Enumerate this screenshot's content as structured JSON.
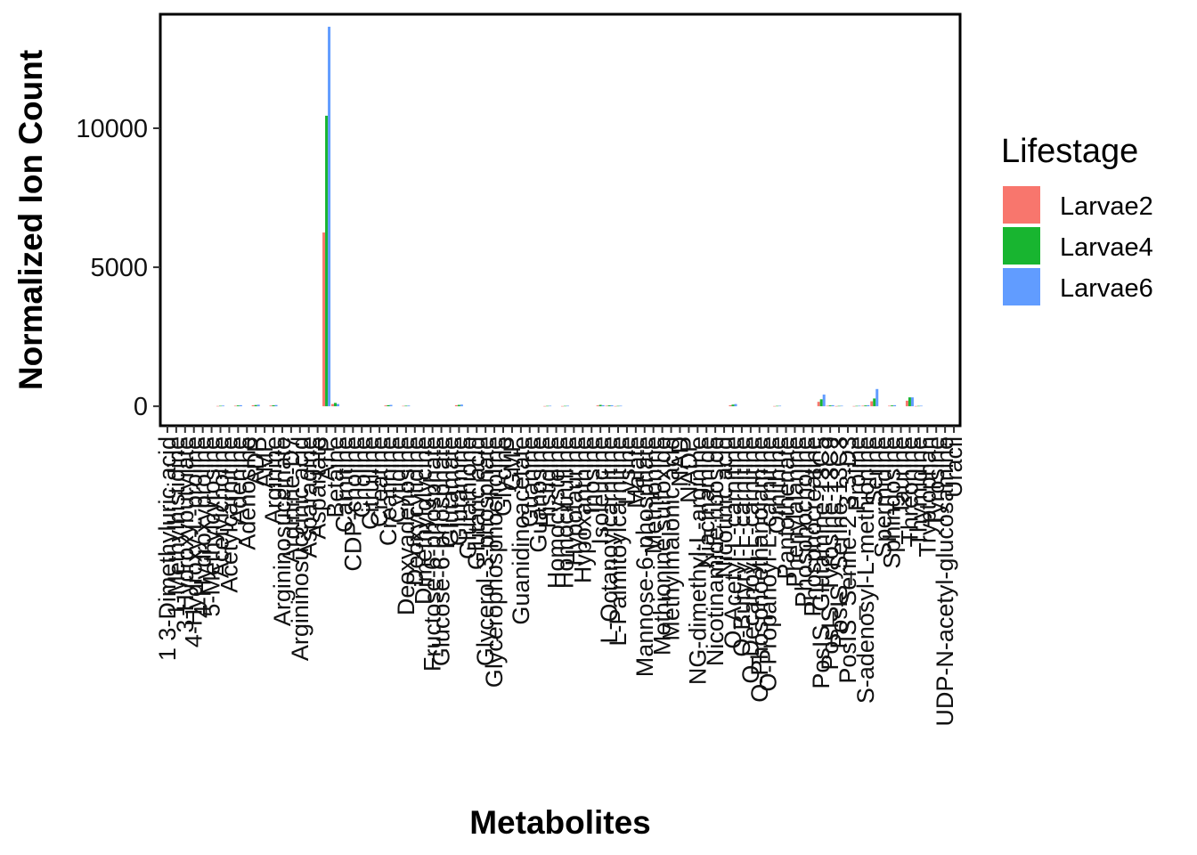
{
  "chart_data": {
    "type": "bar",
    "xlabel": "Metabolites",
    "ylabel": "Normalized Ion Count",
    "ylim": [
      -700,
      14100
    ],
    "yticks": [
      0,
      5000,
      10000
    ],
    "grid": false,
    "legend": {
      "title": "Lifestage",
      "position": "right"
    },
    "categories": [
      "1 3-Dimethyluric acid",
      "1-Methylhistidine",
      "3-Hydroxybutyrate",
      "4-Hydroxy-L-proline",
      "4-Hydroxyproline",
      "5-Methylcytosine",
      "Acetylcholine",
      "Acetylcarnitine",
      "Adenine",
      "Adenosine",
      "ADP",
      "AMP",
      "Arginine",
      "Argininosuccinate",
      "Arginine-D7",
      "Argininosuccinic acid",
      "Asparagine",
      "Aspartate",
      "ATP",
      "Betaine",
      "Carnitine",
      "CDP-choline",
      "Choline",
      "Citrulline",
      "Creatine",
      "Creatinine",
      "Cytidine",
      "Deoxyadenosine",
      "Deoxycytidine",
      "Dimethylglycine",
      "Fructose-6-phosphate",
      "Glucose-6-phosphate",
      "Glutamate",
      "Glutamine",
      "Glutathione",
      "Glutaric acid",
      "Glycerol-3-phosphate",
      "Glycerophosphocholine",
      "Glycine",
      "GMP",
      "Guanidinoacetate",
      "Guanine",
      "Guanosine",
      "Histidine",
      "Homocysteine",
      "Homocitrulline",
      "Hypotaurine",
      "Hypoxanthine",
      "Inosine",
      "Isoleucine",
      "L-Octanoylcarnitine",
      "L-Palmitoylcarnitine",
      "Lysine",
      "Malate",
      "Mannose-6-phosphate",
      "Methionine",
      "Methionine sulfoxide",
      "Methylmalonic acid",
      "NAD",
      "NADP",
      "NG-dimethyl-L-arginine",
      "Niacinamide",
      "Nicotinamide riboside",
      "Nicotinic acid",
      "O-Acetyl-L-carnitine",
      "O-Butyryl-L-carnitine",
      "O-Decanoyl-L-carnitine",
      "O-Phosphoethanolamine",
      "O-Propanoyl-L-carnitine",
      "Ornithine",
      "Pantothenate",
      "Phenylalanine",
      "Phosphocholine",
      "Phosphocreatine",
      "PosIS_Glutamine-13C5",
      "PosIS_Tyrosine-13C9",
      "PosIS_Serine-13C3",
      "PosIS_Serine-2 3 3-D3",
      "Proline",
      "S-adenosyl-L-methionine",
      "Serine",
      "Spermidine",
      "Sphingosine",
      "Taurine",
      "Threonine",
      "Thymidine",
      "Tryptophan",
      "Tyrosine",
      "UDP-N-acetyl-glucosamine",
      "Uracil"
    ],
    "series": [
      {
        "name": "Larvae2",
        "color": "#F8766D",
        "values": [
          0,
          0,
          0,
          0,
          0,
          0,
          12,
          0,
          20,
          0,
          35,
          0,
          25,
          0,
          0,
          0,
          0,
          0,
          6250,
          80,
          0,
          0,
          0,
          0,
          0,
          30,
          0,
          15,
          0,
          0,
          0,
          0,
          0,
          40,
          0,
          0,
          0,
          0,
          0,
          0,
          0,
          0,
          0,
          10,
          0,
          10,
          0,
          0,
          0,
          30,
          20,
          10,
          0,
          0,
          0,
          0,
          0,
          0,
          0,
          0,
          0,
          0,
          0,
          0,
          40,
          0,
          0,
          0,
          0,
          10,
          0,
          0,
          0,
          0,
          160,
          20,
          10,
          0,
          10,
          20,
          180,
          0,
          20,
          0,
          200,
          10,
          0,
          0,
          0,
          0
        ]
      },
      {
        "name": "Larvae4",
        "color": "#18B530",
        "values": [
          0,
          0,
          0,
          0,
          0,
          0,
          18,
          0,
          30,
          0,
          45,
          0,
          35,
          0,
          0,
          0,
          0,
          0,
          10450,
          120,
          0,
          0,
          0,
          0,
          0,
          40,
          0,
          20,
          0,
          0,
          0,
          0,
          0,
          50,
          0,
          0,
          0,
          0,
          0,
          0,
          0,
          0,
          0,
          15,
          0,
          15,
          0,
          0,
          0,
          50,
          30,
          15,
          0,
          0,
          0,
          0,
          0,
          0,
          0,
          0,
          0,
          0,
          0,
          0,
          60,
          0,
          0,
          0,
          0,
          15,
          0,
          0,
          0,
          0,
          250,
          30,
          15,
          0,
          15,
          30,
          280,
          0,
          30,
          0,
          320,
          15,
          0,
          0,
          0,
          0
        ]
      },
      {
        "name": "Larvae6",
        "color": "#619CFF",
        "values": [
          0,
          0,
          0,
          0,
          0,
          0,
          25,
          0,
          40,
          0,
          55,
          0,
          45,
          0,
          0,
          0,
          0,
          0,
          13650,
          80,
          0,
          0,
          0,
          0,
          0,
          50,
          0,
          25,
          0,
          0,
          0,
          0,
          0,
          60,
          0,
          0,
          0,
          0,
          0,
          0,
          0,
          0,
          0,
          20,
          0,
          20,
          0,
          0,
          0,
          40,
          35,
          20,
          0,
          0,
          0,
          0,
          0,
          0,
          0,
          0,
          0,
          0,
          0,
          0,
          80,
          0,
          0,
          0,
          0,
          20,
          0,
          0,
          0,
          0,
          420,
          40,
          20,
          0,
          20,
          40,
          620,
          0,
          40,
          0,
          320,
          20,
          0,
          0,
          0,
          0
        ]
      }
    ]
  }
}
